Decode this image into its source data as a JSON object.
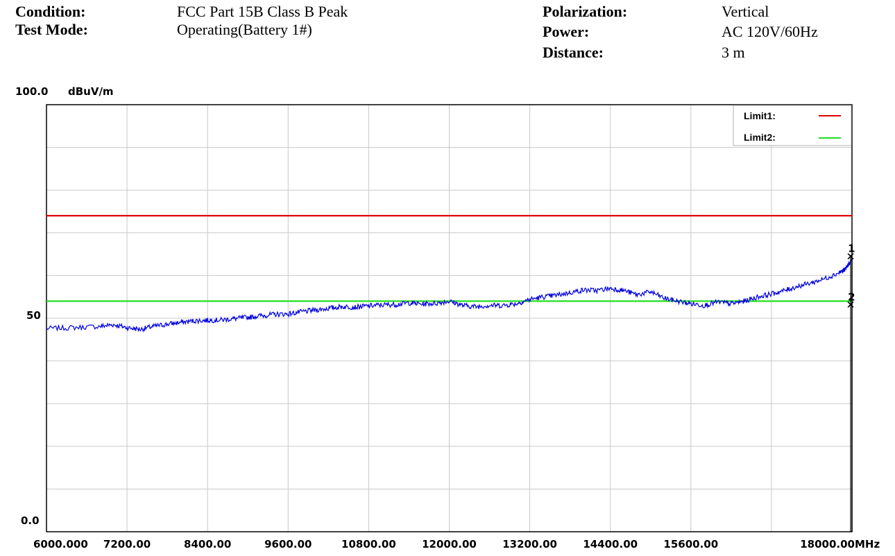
{
  "header": {
    "condition_label": "Condition:",
    "condition_value": "FCC Part 15B Class B Peak",
    "test_mode_label": "Test Mode:",
    "test_mode_value": "Operating(Battery 1#)",
    "polarization_label": "Polarization:",
    "polarization_value": "Vertical",
    "power_label": "Power:",
    "power_value": "AC 120V/60Hz",
    "distance_label": "Distance:",
    "distance_value": "3 m"
  },
  "chart_data": {
    "type": "line",
    "title": "",
    "xlabel": "MHz",
    "ylabel": "dBuV/m",
    "xlim": [
      6000,
      18000
    ],
    "ylim": [
      0,
      100
    ],
    "grid": true,
    "x_ticks": [
      "6000.000",
      "7200.00",
      "8400.00",
      "9600.00",
      "10800.00",
      "12000.00",
      "13200.00",
      "14400.00",
      "15600.00",
      "18000.00"
    ],
    "y_ticks": [
      "100.0",
      "50",
      "0.0"
    ],
    "legend_position": "top-right",
    "limits": [
      {
        "name": "Limit1:",
        "value": 74,
        "color": "#dd0000"
      },
      {
        "name": "Limit2:",
        "value": 54,
        "color": "#22dd22"
      }
    ],
    "series": [
      {
        "color": "#0000dd",
        "x": [
          6000,
          6400,
          6800,
          7000,
          7200,
          7400,
          7600,
          7800,
          8000,
          8200,
          8400,
          8600,
          8800,
          9000,
          9200,
          9400,
          9600,
          9800,
          10000,
          10200,
          10400,
          10600,
          10800,
          11000,
          11200,
          11400,
          11600,
          11800,
          12000,
          12200,
          12400,
          12600,
          12800,
          13000,
          13200,
          13400,
          13600,
          13800,
          14000,
          14200,
          14400,
          14600,
          14800,
          15000,
          15200,
          15400,
          15600,
          15800,
          16000,
          16200,
          16400,
          16600,
          16800,
          17000,
          17200,
          17400,
          17600,
          17800,
          17900,
          18000
        ],
        "y": [
          47.6,
          47.8,
          48.1,
          48.5,
          47.8,
          47.4,
          48.1,
          48.6,
          49.0,
          49.4,
          49.5,
          49.6,
          49.9,
          50.2,
          50.6,
          50.9,
          51.0,
          51.5,
          51.9,
          52.3,
          52.7,
          52.6,
          52.9,
          53.1,
          53.2,
          53.6,
          53.3,
          53.5,
          54.0,
          53.0,
          52.7,
          53.0,
          53.0,
          53.4,
          54.4,
          55.0,
          55.4,
          56.0,
          56.6,
          56.5,
          57.0,
          56.5,
          55.5,
          56.2,
          54.7,
          54.0,
          53.4,
          53.0,
          53.8,
          53.4,
          54.0,
          55.0,
          55.7,
          56.5,
          57.5,
          58.3,
          59.3,
          60.6,
          61.4,
          63.9
        ]
      }
    ],
    "markers": [
      {
        "label": "1",
        "x": 17980,
        "y": 64.5
      },
      {
        "label": "2",
        "x": 17980,
        "y": 53.2
      }
    ]
  }
}
